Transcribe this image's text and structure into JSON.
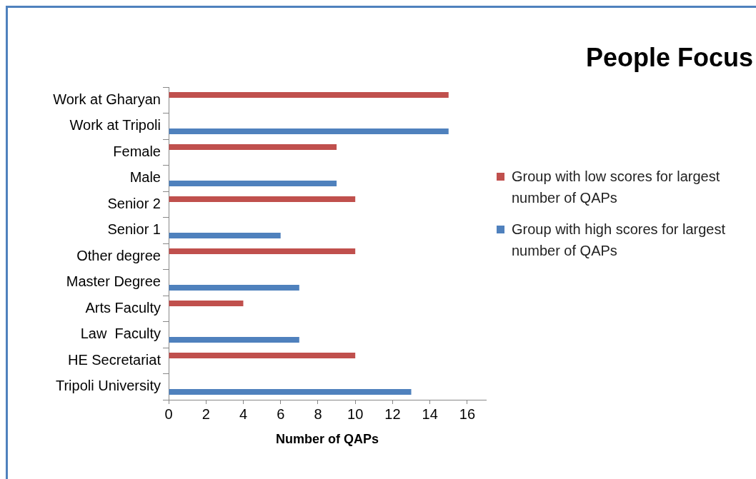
{
  "chart_data": {
    "type": "bar",
    "orientation": "horizontal",
    "title": "People Focus",
    "xlabel": "Number of QAPs",
    "categories": [
      "Work at Gharyan",
      "Work at Tripoli",
      "Female",
      "Male",
      "Senior 2",
      "Senior 1",
      "Other degree",
      "Master Degree",
      "Arts Faculty",
      "Law  Faculty",
      "HE Secretariat",
      "Tripoli University"
    ],
    "series": [
      {
        "name": "Group with low scores for largest number of QAPs",
        "color": "#c0504d",
        "values": [
          15,
          null,
          9,
          null,
          10,
          null,
          10,
          null,
          4,
          null,
          10,
          null
        ]
      },
      {
        "name": "Group with high scores for largest number of QAPs",
        "color": "#4f81bd",
        "values": [
          null,
          15,
          null,
          9,
          null,
          6,
          null,
          7,
          null,
          7,
          null,
          13
        ]
      }
    ],
    "xlim": [
      0,
      17
    ],
    "xticks": [
      0,
      2,
      4,
      6,
      8,
      10,
      12,
      14,
      16
    ],
    "grid": false,
    "legend": "right"
  }
}
